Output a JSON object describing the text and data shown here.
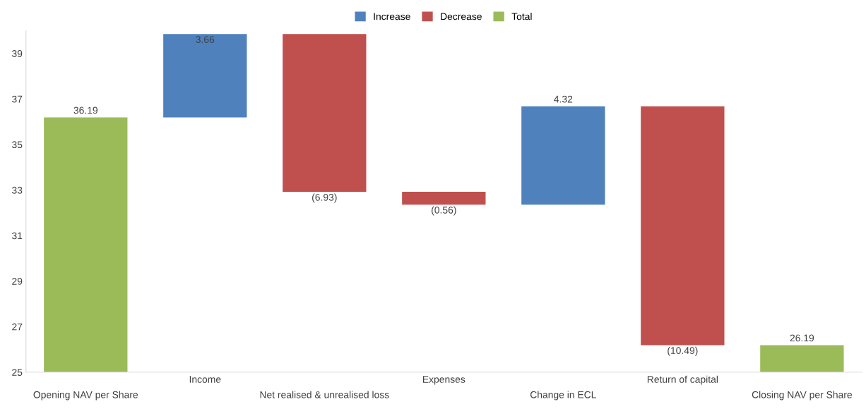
{
  "chart_data": {
    "type": "bar",
    "categories": [
      "Opening NAV per Share",
      "Income",
      "Net realised & unrealised loss",
      "Expenses",
      "Change in ECL",
      "Return of capital",
      "Closing NAV per Share"
    ],
    "series": [
      {
        "name": "Increase",
        "color": "#4f81bd",
        "base": [
          null,
          36.19,
          null,
          null,
          32.36,
          null,
          null
        ],
        "values": [
          null,
          3.66,
          null,
          null,
          4.32,
          null,
          null
        ],
        "value_labels": [
          null,
          "3.66",
          null,
          null,
          "4.32",
          null,
          null
        ]
      },
      {
        "name": "Decrease",
        "color": "#c0504d",
        "base": [
          null,
          null,
          39.85,
          32.92,
          null,
          36.68,
          null
        ],
        "values": [
          null,
          null,
          -6.93,
          -0.56,
          null,
          -10.49,
          null
        ],
        "value_labels": [
          null,
          null,
          "(6.93)",
          "(0.56)",
          null,
          "(10.49)",
          null
        ]
      },
      {
        "name": "Total",
        "color": "#9bbb59",
        "values": [
          36.19,
          null,
          null,
          null,
          null,
          null,
          26.19
        ],
        "value_labels": [
          "36.19",
          null,
          null,
          null,
          null,
          null,
          "26.19"
        ]
      }
    ],
    "ylim": [
      25,
      40
    ],
    "yticks": [
      25,
      27,
      29,
      31,
      33,
      35,
      37,
      39
    ],
    "grid": false,
    "legend": "top"
  }
}
